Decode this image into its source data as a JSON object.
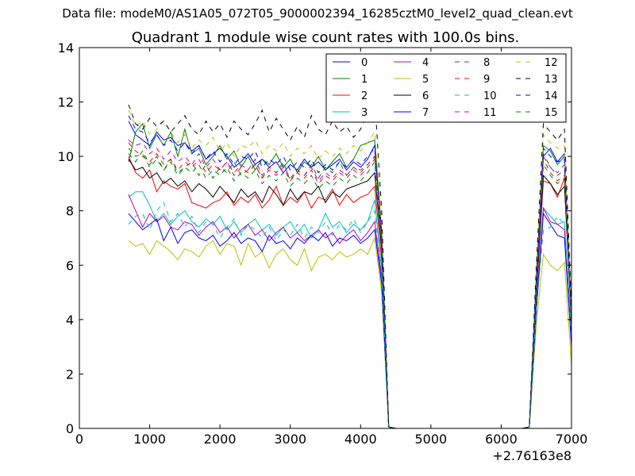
{
  "suptitle": "Data file: modeM0/AS1A05_072T05_9000002394_16285cztM0_level2_quad_clean.evt",
  "chart_data": {
    "type": "line",
    "title": "Quadrant 1 module wise count rates with 100.0s bins.",
    "xlabel": "",
    "ylabel": "",
    "x_offset_label": "+2.76163e8",
    "xlim": [
      0,
      7000
    ],
    "ylim": [
      0,
      14
    ],
    "xticks": [
      0,
      1000,
      2000,
      3000,
      4000,
      5000,
      6000,
      7000
    ],
    "yticks": [
      0,
      2,
      4,
      6,
      8,
      10,
      12,
      14
    ],
    "grid": false,
    "legend_position": "top-right",
    "legend_columns": 4,
    "x": [
      700,
      800,
      900,
      1000,
      1100,
      1200,
      1300,
      1400,
      1500,
      1600,
      1700,
      1800,
      1900,
      2000,
      2100,
      2200,
      2300,
      2400,
      2500,
      2600,
      2700,
      2800,
      2900,
      3000,
      3100,
      3200,
      3300,
      3400,
      3500,
      3600,
      3700,
      3800,
      3900,
      4000,
      4100,
      4200,
      4300,
      4400,
      4500,
      4600,
      4700,
      4800,
      4900,
      5000,
      5100,
      5200,
      5300,
      5400,
      5500,
      5600,
      5700,
      5800,
      5900,
      6000,
      6100,
      6200,
      6300,
      6400,
      6500,
      6600,
      6700,
      6800,
      6900,
      7000
    ],
    "series": [
      {
        "name": "0",
        "color": "#0000ff",
        "dash": "solid",
        "values": [
          11.3,
          10.8,
          10.6,
          10.4,
          10.9,
          10.6,
          10.7,
          10.4,
          10.5,
          10.2,
          10.4,
          9.9,
          10.1,
          10.3,
          10.0,
          9.6,
          9.8,
          10.1,
          9.7,
          9.9,
          9.6,
          9.8,
          9.4,
          9.7,
          9.5,
          9.9,
          9.6,
          9.8,
          9.5,
          9.7,
          9.9,
          9.5,
          9.8,
          9.6,
          9.9,
          10.4,
          7.0,
          0.05,
          0,
          0,
          0,
          0,
          0,
          0,
          0,
          0,
          0,
          0,
          0,
          0,
          0,
          0,
          0,
          0,
          0,
          0,
          0,
          0.05,
          5.5,
          10.0,
          10.3,
          9.8,
          10.1,
          4.2
        ]
      },
      {
        "name": "1",
        "color": "#008000",
        "dash": "solid",
        "values": [
          9.8,
          10.9,
          11.2,
          10.3,
          10.8,
          10.4,
          10.9,
          10.0,
          11.0,
          10.1,
          10.3,
          9.7,
          10.0,
          10.4,
          9.9,
          10.2,
          9.6,
          10.0,
          9.5,
          9.9,
          9.7,
          10.1,
          9.6,
          9.9,
          9.4,
          9.8,
          9.6,
          10.0,
          9.5,
          9.8,
          10.1,
          9.6,
          9.9,
          10.4,
          10.5,
          10.6,
          7.2,
          0.05,
          0,
          0,
          0,
          0,
          0,
          0,
          0,
          0,
          0,
          0,
          0,
          0,
          0,
          0,
          0,
          0,
          0,
          0,
          0,
          0.05,
          5.6,
          10.4,
          10.2,
          9.7,
          10.0,
          4.1
        ]
      },
      {
        "name": "2",
        "color": "#ff0000",
        "dash": "solid",
        "values": [
          10.0,
          9.4,
          9.2,
          9.5,
          8.7,
          9.1,
          8.9,
          8.8,
          9.0,
          8.3,
          8.2,
          8.1,
          8.3,
          8.4,
          8.7,
          8.2,
          8.5,
          8.3,
          8.6,
          8.1,
          8.4,
          8.9,
          8.2,
          8.5,
          8.3,
          8.7,
          8.1,
          8.5,
          8.4,
          8.8,
          8.2,
          8.6,
          8.3,
          8.5,
          8.6,
          8.9,
          6.2,
          0.05,
          0,
          0,
          0,
          0,
          0,
          0,
          0,
          0,
          0,
          0,
          0,
          0,
          0,
          0,
          0,
          0,
          0,
          0,
          0,
          0.05,
          4.9,
          9.1,
          9.0,
          8.5,
          9.2,
          3.8
        ]
      },
      {
        "name": "3",
        "color": "#00bfbf",
        "dash": "solid",
        "values": [
          8.5,
          8.7,
          8.7,
          8.2,
          7.6,
          7.9,
          7.5,
          7.8,
          8.0,
          7.6,
          7.4,
          7.7,
          7.5,
          7.8,
          7.3,
          7.6,
          7.2,
          7.5,
          7.7,
          7.3,
          7.5,
          7.1,
          7.4,
          7.6,
          7.2,
          7.5,
          7.0,
          7.3,
          7.9,
          7.4,
          7.6,
          7.2,
          7.5,
          7.3,
          7.6,
          8.4,
          5.8,
          0.05,
          0,
          0,
          0,
          0,
          0,
          0,
          0,
          0,
          0,
          0,
          0,
          0,
          0,
          0,
          0,
          0,
          0,
          0,
          0,
          0.05,
          4.6,
          8.1,
          7.8,
          7.5,
          7.6,
          3.4
        ]
      },
      {
        "name": "4",
        "color": "#bf00bf",
        "dash": "solid",
        "values": [
          8.6,
          8.0,
          7.4,
          7.9,
          7.6,
          7.8,
          7.4,
          7.3,
          7.6,
          7.5,
          7.1,
          7.4,
          7.6,
          7.2,
          7.4,
          7.0,
          7.3,
          7.5,
          7.1,
          7.3,
          6.9,
          7.2,
          7.4,
          7.0,
          7.2,
          6.9,
          7.1,
          7.3,
          7.0,
          7.2,
          6.8,
          7.1,
          7.3,
          6.9,
          7.2,
          7.6,
          5.5,
          0.05,
          0,
          0,
          0,
          0,
          0,
          0,
          0,
          0,
          0,
          0,
          0,
          0,
          0,
          0,
          0,
          0,
          0,
          0,
          0,
          0.05,
          4.5,
          8.1,
          7.6,
          7.5,
          7.3,
          3.2
        ]
      },
      {
        "name": "5",
        "color": "#bfbf00",
        "dash": "solid",
        "values": [
          6.9,
          6.7,
          6.8,
          6.4,
          6.9,
          6.7,
          6.5,
          6.2,
          6.6,
          6.5,
          6.3,
          6.7,
          6.9,
          6.4,
          6.8,
          6.7,
          6.0,
          6.8,
          6.3,
          6.5,
          5.9,
          6.4,
          6.6,
          6.2,
          6.0,
          6.6,
          5.8,
          6.3,
          6.4,
          6.2,
          6.5,
          6.3,
          6.4,
          6.6,
          6.4,
          7.0,
          5.0,
          0.05,
          0,
          0,
          0,
          0,
          0,
          0,
          0,
          0,
          0,
          0,
          0,
          0,
          0,
          0,
          0,
          0,
          0,
          0,
          0,
          0.05,
          3.8,
          6.4,
          6.0,
          5.8,
          6.1,
          2.3
        ]
      },
      {
        "name": "6",
        "color": "#000000",
        "dash": "solid",
        "values": [
          9.9,
          9.5,
          9.6,
          9.2,
          9.4,
          9.0,
          9.2,
          8.9,
          9.1,
          8.7,
          9.0,
          8.8,
          8.5,
          8.9,
          8.6,
          8.3,
          8.8,
          8.5,
          8.7,
          8.3,
          8.9,
          8.6,
          8.2,
          8.8,
          8.4,
          8.7,
          8.6,
          8.9,
          8.3,
          8.7,
          8.5,
          8.8,
          8.9,
          9.0,
          9.1,
          9.4,
          6.6,
          0.05,
          0,
          0,
          0,
          0,
          0,
          0,
          0,
          0,
          0,
          0,
          0,
          0,
          0,
          0,
          0,
          0,
          0,
          0,
          0,
          0.05,
          5.0,
          9.3,
          9.0,
          8.6,
          8.9,
          3.9
        ]
      },
      {
        "name": "7",
        "color": "#0000ff",
        "dash": "solid",
        "values": [
          7.9,
          7.6,
          7.3,
          7.5,
          7.7,
          6.9,
          7.4,
          6.8,
          7.2,
          7.3,
          7.0,
          6.9,
          7.1,
          6.7,
          6.9,
          7.2,
          6.8,
          7.0,
          6.9,
          6.5,
          7.1,
          6.8,
          6.9,
          6.6,
          7.0,
          6.8,
          7.1,
          6.9,
          7.2,
          6.7,
          7.0,
          6.9,
          7.1,
          6.8,
          7.0,
          7.3,
          5.3,
          0.05,
          0,
          0,
          0,
          0,
          0,
          0,
          0,
          0,
          0,
          0,
          0,
          0,
          0,
          0,
          0,
          0,
          0,
          0,
          0,
          0.05,
          4.3,
          7.9,
          7.5,
          7.1,
          7.0,
          3.0
        ]
      },
      {
        "name": "8",
        "color": "#008000",
        "dash": "dashed",
        "values": [
          10.1,
          9.8,
          10.2,
          9.7,
          10.0,
          9.5,
          9.9,
          9.4,
          9.6,
          9.8,
          9.3,
          9.7,
          9.2,
          9.6,
          9.4,
          9.8,
          9.3,
          9.5,
          9.7,
          9.2,
          9.6,
          9.4,
          9.8,
          9.1,
          9.5,
          9.3,
          9.7,
          9.2,
          9.6,
          9.4,
          9.8,
          9.3,
          9.6,
          9.5,
          9.7,
          10.0,
          7.0,
          0.05,
          0,
          0,
          0,
          0,
          0,
          0,
          0,
          0,
          0,
          0,
          0,
          0,
          0,
          0,
          0,
          0,
          0,
          0,
          0,
          0.05,
          5.4,
          10.1,
          9.6,
          9.3,
          9.5,
          4.0
        ]
      },
      {
        "name": "9",
        "color": "#ff0000",
        "dash": "dashed",
        "values": [
          10.5,
          10.2,
          10.0,
          9.8,
          10.1,
          9.7,
          9.9,
          9.5,
          9.8,
          9.6,
          9.9,
          9.4,
          9.7,
          9.5,
          9.8,
          9.3,
          9.6,
          9.4,
          9.7,
          9.2,
          9.5,
          9.3,
          9.6,
          9.1,
          9.4,
          9.2,
          9.5,
          9.0,
          9.3,
          9.1,
          9.4,
          9.2,
          9.5,
          9.3,
          9.6,
          9.9,
          6.9,
          0.05,
          0,
          0,
          0,
          0,
          0,
          0,
          0,
          0,
          0,
          0,
          0,
          0,
          0,
          0,
          0,
          0,
          0,
          0,
          0,
          0.05,
          5.2,
          9.9,
          9.4,
          9.1,
          9.3,
          3.9
        ]
      },
      {
        "name": "10",
        "color": "#00bfbf",
        "dash": "dashed",
        "values": [
          7.5,
          7.8,
          7.9,
          7.3,
          8.0,
          8.3,
          7.6,
          7.9,
          7.4,
          7.8,
          7.2,
          7.6,
          7.5,
          7.0,
          7.4,
          7.7,
          7.1,
          7.5,
          7.3,
          7.0,
          7.4,
          6.9,
          7.3,
          7.1,
          7.5,
          7.0,
          7.4,
          7.2,
          7.6,
          7.1,
          7.5,
          7.3,
          7.7,
          7.2,
          7.6,
          8.0,
          5.7,
          0.05,
          0,
          0,
          0,
          0,
          0,
          0,
          0,
          0,
          0,
          0,
          0,
          0,
          0,
          0,
          0,
          0,
          0,
          0,
          0,
          0.05,
          4.4,
          7.3,
          7.4,
          7.8,
          7.5,
          3.3
        ]
      },
      {
        "name": "11",
        "color": "#bf00bf",
        "dash": "dashed",
        "values": [
          10.6,
          10.4,
          10.5,
          10.1,
          10.3,
          9.9,
          10.2,
          9.8,
          10.0,
          9.7,
          10.1,
          9.6,
          9.9,
          9.5,
          9.8,
          9.4,
          9.7,
          9.5,
          9.9,
          9.3,
          9.6,
          9.4,
          9.7,
          9.2,
          9.5,
          9.3,
          9.6,
          9.1,
          9.4,
          9.2,
          9.5,
          9.3,
          9.6,
          9.4,
          9.7,
          10.0,
          7.1,
          0.05,
          0,
          0,
          0,
          0,
          0,
          0,
          0,
          0,
          0,
          0,
          0,
          0,
          0,
          0,
          0,
          0,
          0,
          0,
          0,
          0.05,
          5.3,
          10.0,
          9.6,
          9.4,
          9.7,
          4.0
        ]
      },
      {
        "name": "12",
        "color": "#bfbf00",
        "dash": "dashed",
        "values": [
          11.7,
          11.1,
          11.3,
          10.8,
          11.0,
          11.3,
          10.9,
          10.5,
          10.8,
          10.3,
          10.6,
          10.4,
          10.7,
          10.2,
          10.5,
          10.0,
          10.4,
          10.3,
          10.6,
          10.1,
          10.4,
          10.2,
          10.5,
          10.0,
          10.3,
          10.1,
          10.4,
          9.9,
          10.2,
          10.0,
          10.3,
          10.1,
          10.4,
          10.2,
          10.5,
          10.9,
          7.6,
          0.05,
          0,
          0,
          0,
          0,
          0,
          0,
          0,
          0,
          0,
          0,
          0,
          0,
          0,
          0,
          0,
          0,
          0,
          0,
          0,
          0.05,
          5.8,
          10.8,
          10.5,
          10.3,
          10.4,
          4.3
        ]
      },
      {
        "name": "13",
        "color": "#000000",
        "dash": "dashed",
        "values": [
          11.9,
          11.2,
          11.0,
          11.4,
          11.1,
          11.3,
          10.9,
          11.2,
          11.5,
          11.0,
          10.8,
          11.3,
          10.9,
          11.2,
          10.7,
          11.3,
          11.0,
          10.8,
          11.2,
          11.7,
          10.9,
          11.4,
          11.0,
          10.6,
          11.1,
          10.7,
          11.5,
          11.0,
          10.8,
          11.3,
          10.9,
          11.1,
          10.7,
          11.0,
          11.6,
          12.2,
          8.0,
          0.05,
          0,
          0,
          0,
          0,
          0,
          0,
          0,
          0,
          0,
          0,
          0,
          0,
          0,
          0,
          0,
          0,
          0,
          0,
          0,
          0.05,
          6.0,
          11.2,
          10.9,
          10.6,
          11.0,
          4.4
        ]
      },
      {
        "name": "14",
        "color": "#0000ff",
        "dash": "dashed",
        "values": [
          11.5,
          11.0,
          10.9,
          10.5,
          10.8,
          10.4,
          10.6,
          10.2,
          10.5,
          10.1,
          10.4,
          9.9,
          10.2,
          9.8,
          10.1,
          9.7,
          10.0,
          9.9,
          10.2,
          9.6,
          9.9,
          9.7,
          10.0,
          9.5,
          9.8,
          9.6,
          9.9,
          9.4,
          9.7,
          9.5,
          9.8,
          9.6,
          9.9,
          9.7,
          10.0,
          10.3,
          7.2,
          0.05,
          0,
          0,
          0,
          0,
          0,
          0,
          0,
          0,
          0,
          0,
          0,
          0,
          0,
          0,
          0,
          0,
          0,
          0,
          0,
          0.05,
          5.5,
          10.3,
          10.0,
          9.8,
          9.9,
          4.1
        ]
      },
      {
        "name": "15",
        "color": "#008000",
        "dash": "dashed",
        "values": [
          10.3,
          10.0,
          10.1,
          9.6,
          9.9,
          9.5,
          9.8,
          9.3,
          9.6,
          9.4,
          9.7,
          9.2,
          9.5,
          9.3,
          9.6,
          9.1,
          9.4,
          9.2,
          9.5,
          9.0,
          9.3,
          9.1,
          9.4,
          8.9,
          9.2,
          9.0,
          9.3,
          8.8,
          9.1,
          8.9,
          9.2,
          9.0,
          9.3,
          9.1,
          9.4,
          9.8,
          6.8,
          0.05,
          0,
          0,
          0,
          0,
          0,
          0,
          0,
          0,
          0,
          0,
          0,
          0,
          0,
          0,
          0,
          0,
          0,
          0,
          0,
          0.05,
          5.1,
          9.7,
          9.3,
          9.0,
          9.2,
          3.8
        ]
      }
    ]
  }
}
